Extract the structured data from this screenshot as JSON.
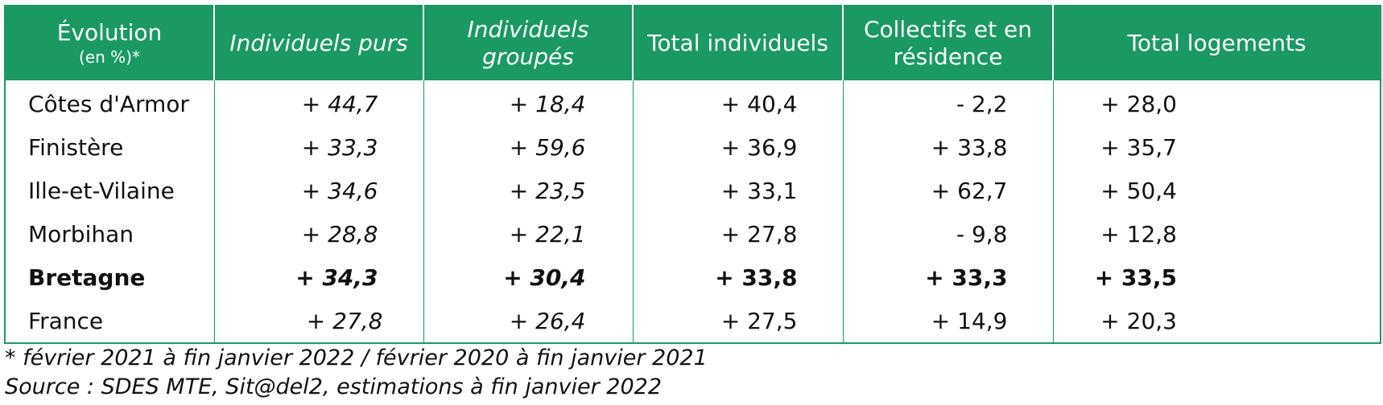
{
  "table": {
    "headers": {
      "col0_line1": "Évolution",
      "col0_line2": "(en %)*",
      "col1": "Individuels purs",
      "col2_line1": "Individuels",
      "col2_line2": "groupés",
      "col3": "Total individuels",
      "col4_line1": "Collectifs et en",
      "col4_line2": "résidence",
      "col5": "Total logements"
    },
    "rows": [
      {
        "region": "Côtes d'Armor",
        "purs": "+ 44,7",
        "groupes": "+ 18,4",
        "total_ind": "+ 40,4",
        "collectifs": "- 2,2",
        "total_log": "+ 28,0"
      },
      {
        "region": "Finistère",
        "purs": "+ 33,3",
        "groupes": "+ 59,6",
        "total_ind": "+ 36,9",
        "collectifs": "+ 33,8",
        "total_log": "+ 35,7"
      },
      {
        "region": "Ille-et-Vilaine",
        "purs": "+ 34,6",
        "groupes": "+ 23,5",
        "total_ind": "+ 33,1",
        "collectifs": "+ 62,7",
        "total_log": "+ 50,4"
      },
      {
        "region": "Morbihan",
        "purs": "+ 28,8",
        "groupes": "+ 22,1",
        "total_ind": "+ 27,8",
        "collectifs": "- 9,8",
        "total_log": "+ 12,8"
      },
      {
        "region": "Bretagne",
        "purs": "+ 34,3",
        "groupes": "+ 30,4",
        "total_ind": "+ 33,8",
        "collectifs": "+ 33,3",
        "total_log": "+ 33,5"
      },
      {
        "region": "France",
        "purs": "+ 27,8",
        "groupes": "+ 26,4",
        "total_ind": "+ 27,5",
        "collectifs": "+ 14,9",
        "total_log": "+ 20,3"
      }
    ]
  },
  "footnotes": {
    "period": "* février 2021 à fin janvier 2022 /  février 2020 à fin janvier 2021",
    "source": "Source : SDES MTE, Sit@del2, estimations à fin janvier 2022"
  },
  "colors": {
    "header_bg": "#1a9963",
    "header_text": "#ffffff",
    "border": "#1a9963"
  }
}
